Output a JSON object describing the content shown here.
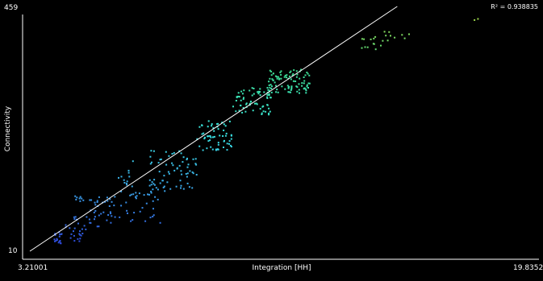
{
  "chart_data": {
    "type": "scatter",
    "title": "",
    "xlabel": "Integration [HH]",
    "ylabel": "Connectivity",
    "annotation": "R² = 0.938835",
    "xlim": [
      3.21001,
      19.8352
    ],
    "ylim": [
      10,
      459
    ],
    "x_tick_labels": [
      "3.21001",
      "19.8352"
    ],
    "y_tick_labels": [
      "10",
      "459"
    ],
    "grid": false,
    "legend": "none",
    "point_color_scale": [
      "#2c3cd8",
      "#3aa3e6",
      "#39e6e0",
      "#3ddc8c",
      "#b8d83a"
    ],
    "regression_line": {
      "color": "#ffffff",
      "x": [
        3.21001,
        15.5
      ],
      "y": [
        10,
        459
      ]
    },
    "clusters": [
      {
        "x": [
          4.0,
          4.3
        ],
        "y": [
          20,
          45
        ],
        "n": 18
      },
      {
        "x": [
          4.4,
          5.1
        ],
        "y": [
          28,
          75
        ],
        "n": 26
      },
      {
        "x": [
          4.7,
          5.0
        ],
        "y": [
          95,
          112
        ],
        "n": 8
      },
      {
        "x": [
          5.1,
          6.3
        ],
        "y": [
          55,
          110
        ],
        "n": 40
      },
      {
        "x": [
          6.1,
          6.7
        ],
        "y": [
          110,
          180
        ],
        "n": 14
      },
      {
        "x": [
          6.4,
          7.6
        ],
        "y": [
          60,
          120
        ],
        "n": 30
      },
      {
        "x": [
          7.2,
          8.8
        ],
        "y": [
          120,
          195
        ],
        "n": 70
      },
      {
        "x": [
          8.8,
          10.0
        ],
        "y": [
          195,
          250
        ],
        "n": 60
      },
      {
        "x": [
          10.0,
          11.3
        ],
        "y": [
          260,
          310
        ],
        "n": 70
      },
      {
        "x": [
          11.2,
          12.6
        ],
        "y": [
          300,
          345
        ],
        "n": 90
      },
      {
        "x": [
          14.3,
          15.0
        ],
        "y": [
          380,
          405
        ],
        "n": 12
      },
      {
        "x": [
          15.0,
          16.0
        ],
        "y": [
          395,
          415
        ],
        "n": 10
      },
      {
        "x": [
          18.0,
          18.2
        ],
        "y": [
          433,
          437
        ],
        "n": 2
      }
    ]
  }
}
